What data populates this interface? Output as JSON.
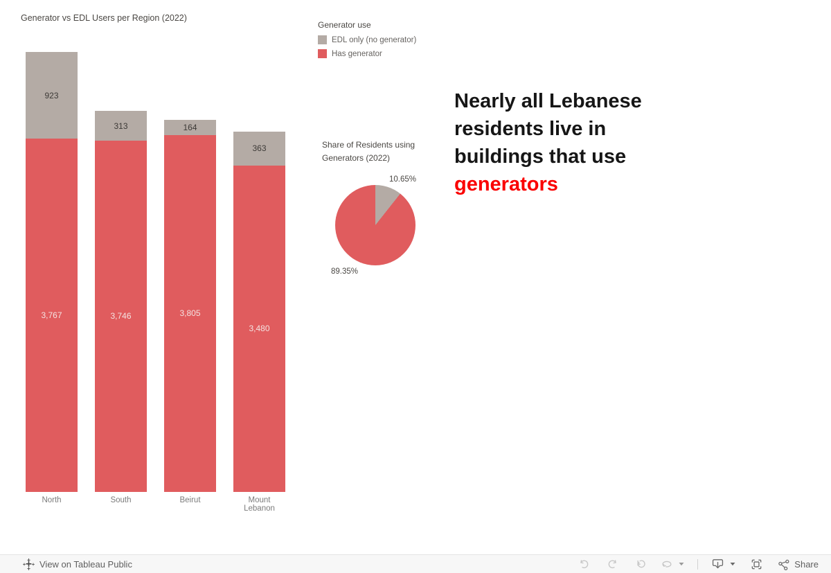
{
  "chart_data": [
    {
      "type": "bar",
      "stacked": true,
      "title": "Generator vs EDL Users per Region (2022)",
      "categories": [
        "North",
        "South",
        "Beirut",
        "Mount Lebanon"
      ],
      "series": [
        {
          "name": "EDL only (no generator)",
          "color": "#b4aba5",
          "values": [
            923,
            313,
            164,
            363
          ],
          "labels": [
            "923",
            "313",
            "164",
            "363"
          ]
        },
        {
          "name": "Has generator",
          "color": "#e05c5e",
          "values": [
            3767,
            3746,
            3805,
            3480
          ],
          "labels": [
            "3,767",
            "3,746",
            "3,805",
            "3,480"
          ]
        }
      ],
      "legend_title": "Generator use",
      "ylim": [
        0,
        4690
      ],
      "grid": false,
      "axis_labels_shown": "categories-only"
    },
    {
      "type": "pie",
      "title": "Share of Residents using Generators (2022)",
      "slices": [
        {
          "label": "10.65%",
          "value": 10.65,
          "color": "#b4aba5",
          "name": "EDL only (no generator)"
        },
        {
          "label": "89.35%",
          "value": 89.35,
          "color": "#e05c5e",
          "name": "Has generator"
        }
      ],
      "start_angle": "12-o'clock",
      "direction": "clockwise"
    }
  ],
  "legend": {
    "title": "Generator use",
    "items": [
      {
        "label": "EDL only (no generator)",
        "color": "#b4aba5"
      },
      {
        "label": "Has generator",
        "color": "#e05c5e"
      }
    ]
  },
  "headline": {
    "lines": [
      "Nearly all Lebanese",
      "residents live in",
      "buildings that use"
    ],
    "highlight": "generators",
    "highlight_color": "#fa0000",
    "text_color": "#161616"
  },
  "toolbar": {
    "view_label": "View on Tableau Public",
    "share_label": "Share"
  },
  "colors": {
    "bar_red": "#e05c5e",
    "bar_gray": "#b4aba5",
    "chart_text": "#4a4743",
    "axis_text": "#7b7b7b",
    "toolbar_bg": "#f7f7f7"
  }
}
